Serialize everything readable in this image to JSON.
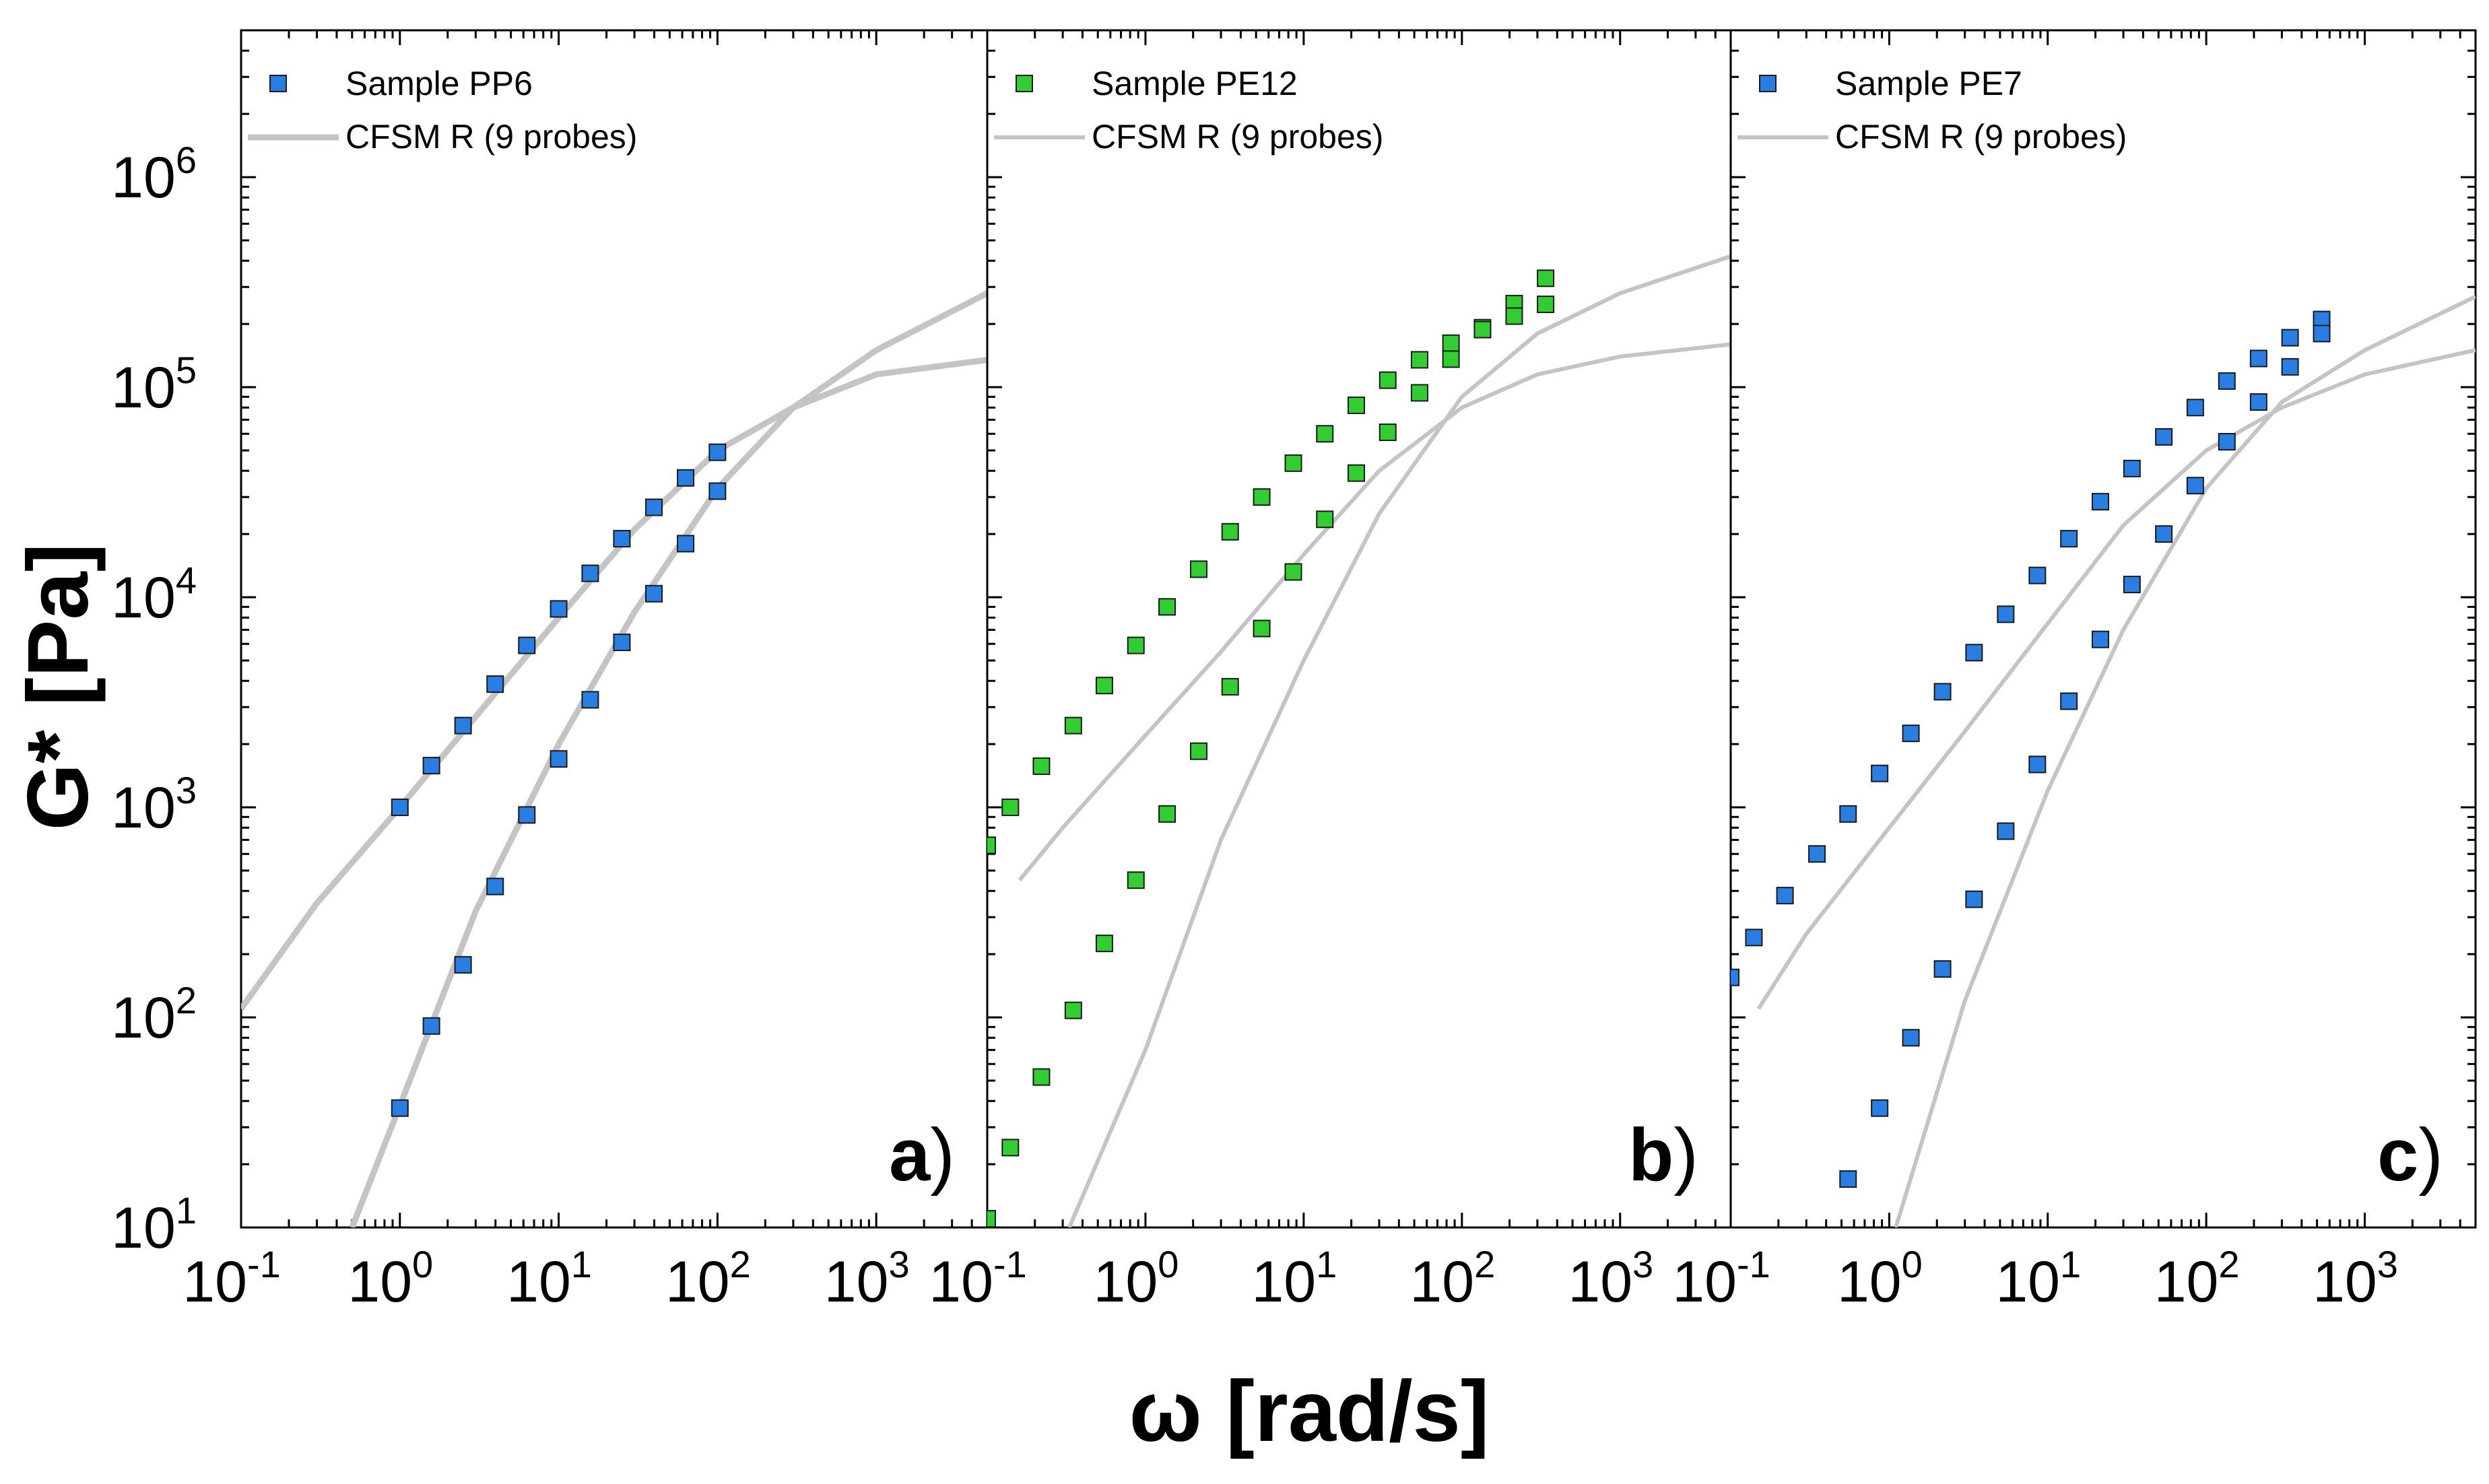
{
  "chart_data": {
    "type": "scatter",
    "xlabel": "ω [rad/s]",
    "ylabel": "G* [Pa]",
    "xscale": "log",
    "yscale": "log",
    "ylim": [
      10,
      5000000
    ],
    "y_ticks": [
      {
        "base": "10",
        "exp": "1"
      },
      {
        "base": "10",
        "exp": "2"
      },
      {
        "base": "10",
        "exp": "3"
      },
      {
        "base": "10",
        "exp": "4"
      },
      {
        "base": "10",
        "exp": "5"
      },
      {
        "base": "10",
        "exp": "6"
      }
    ],
    "x_ticks": [
      {
        "base": "10",
        "exp": "-1"
      },
      {
        "base": "10",
        "exp": "0"
      },
      {
        "base": "10",
        "exp": "1"
      },
      {
        "base": "10",
        "exp": "2"
      },
      {
        "base": "10",
        "exp": "3"
      }
    ],
    "legend_position": "top-left",
    "panels": [
      {
        "tag": "a",
        "tag_paren": ")",
        "xlim": [
          0.1,
          5000
        ],
        "marker_color": "#2a7de1",
        "legend_data": "Sample PP6",
        "legend_model": "CFSM R (9 probes)",
        "series": [
          {
            "name": "Sample PP6 (upper)",
            "x": [
              1.0,
              1.58,
              2.5,
              3.98,
              6.3,
              10,
              15.8,
              25,
              39.8,
              63,
              100
            ],
            "y": [
              1000,
              1580,
              2450,
              3860,
              5900,
              8800,
              13000,
              19000,
              26800,
              37000,
              49000
            ]
          },
          {
            "name": "Sample PP6 (lower)",
            "x": [
              1.0,
              1.58,
              2.5,
              3.98,
              6.3,
              10,
              15.8,
              25,
              39.8,
              63,
              100
            ],
            "y": [
              37,
              91,
              178,
              420,
              920,
              1700,
              3250,
              6100,
              10400,
              18000,
              32000
            ]
          }
        ],
        "model": [
          {
            "name": "CFSM R upper",
            "x": [
              0.1,
              0.3,
              1,
              3,
              10,
              30,
              100,
              300,
              1000,
              5000
            ],
            "y": [
              110,
              350,
              1000,
              2700,
              8000,
              21000,
              50000,
              80000,
              115000,
              135000
            ]
          },
          {
            "name": "CFSM R lower",
            "x": [
              0.5,
              1,
              3,
              10,
              30,
              100,
              300,
              1000,
              5000
            ],
            "y": [
              10,
              38,
              320,
              2000,
              8500,
              33000,
              80000,
              150000,
              280000
            ]
          }
        ]
      },
      {
        "tag": "b",
        "tag_paren": ")",
        "xlim": [
          0.1,
          5000
        ],
        "marker_color": "#33cc33",
        "legend_data": "Sample PE12",
        "legend_model": "CFSM R (9 probes)",
        "series": [
          {
            "name": "Sample PE12 (upper)",
            "x": [
              0.1,
              0.14,
              0.22,
              0.35,
              0.55,
              0.87,
              1.37,
              2.17,
              3.43,
              5.43,
              8.6,
              13.6,
              21.5,
              34,
              54,
              85.3,
              135,
              214,
              338
            ],
            "y": [
              660,
              1000,
              1570,
              2450,
              3800,
              5900,
              9000,
              13600,
              20500,
              30000,
              43500,
              60000,
              82000,
              108000,
              135000,
              162000,
              192000,
              250000,
              330000
            ]
          },
          {
            "name": "Sample PE12 (lower)",
            "x": [
              0.1,
              0.14,
              0.22,
              0.35,
              0.55,
              0.87,
              1.37,
              2.17,
              3.43,
              5.43,
              8.6,
              13.6,
              21.5,
              34,
              54,
              85.3,
              135,
              214,
              338
            ],
            "y": [
              11,
              24,
              52,
              108,
              225,
              450,
              930,
              1850,
              3750,
              7100,
              13200,
              23500,
              39000,
              61000,
              94000,
              136000,
              188000,
              218000,
              248000
            ]
          }
        ],
        "model": [
          {
            "name": "CFSM R upper",
            "x": [
              0.16,
              0.3,
              1,
              3,
              10,
              30,
              100,
              300,
              1000,
              5000
            ],
            "y": [
              450,
              800,
              2200,
              5500,
              16000,
              40000,
              80000,
              115000,
              140000,
              160000
            ]
          },
          {
            "name": "CFSM R lower",
            "x": [
              0.33,
              1,
              3,
              10,
              30,
              100,
              300,
              1000,
              5000
            ],
            "y": [
              10,
              70,
              700,
              5000,
              25000,
              90000,
              180000,
              280000,
              420000
            ]
          }
        ]
      },
      {
        "tag": "c",
        "tag_paren": ")",
        "xlim": [
          0.1,
          5000
        ],
        "marker_color": "#2a7de1",
        "legend_data": "Sample PE7",
        "legend_model": "CFSM R (9 probes)",
        "series": [
          {
            "name": "Sample PE7 (upper)",
            "x": [
              0.1,
              0.14,
              0.22,
              0.35,
              0.55,
              0.87,
              1.37,
              2.17,
              3.43,
              5.43,
              8.6,
              13.6,
              21.5,
              34,
              54,
              85.3,
              135,
              214,
              338,
              535
            ],
            "y": [
              155,
              240,
              380,
              600,
              930,
              1450,
              2250,
              3550,
              5450,
              8300,
              12700,
              19000,
              28500,
              41000,
              58000,
              80000,
              107000,
              137000,
              172000,
              210000
            ]
          },
          {
            "name": "Sample PE7 (lower)",
            "x": [
              0.55,
              0.87,
              1.37,
              2.17,
              3.43,
              5.43,
              8.6,
              13.6,
              21.5,
              34,
              54,
              85.3,
              135,
              214,
              338,
              535
            ],
            "y": [
              17,
              37,
              80,
              170,
              365,
              770,
              1600,
              3200,
              6300,
              11500,
              20000,
              34000,
              55000,
              85000,
              125000,
              180000
            ]
          }
        ],
        "model": [
          {
            "name": "CFSM R upper",
            "x": [
              0.15,
              0.3,
              1,
              3,
              10,
              30,
              100,
              300,
              1000,
              5000
            ],
            "y": [
              110,
              250,
              800,
              2300,
              7500,
              22000,
              50000,
              80000,
              115000,
              150000
            ]
          },
          {
            "name": "CFSM R lower",
            "x": [
              1.1,
              3,
              10,
              30,
              100,
              300,
              1000,
              5000
            ],
            "y": [
              10,
              120,
              1200,
              7000,
              33000,
              85000,
              150000,
              270000
            ]
          }
        ]
      }
    ]
  }
}
